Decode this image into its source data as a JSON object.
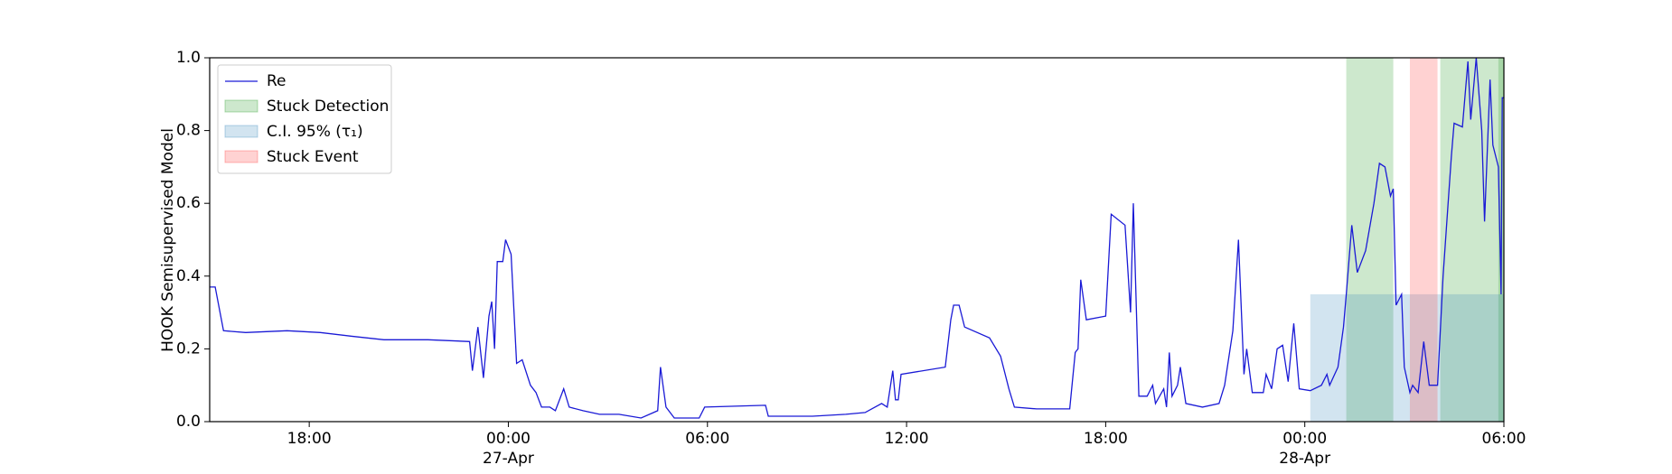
{
  "chart_data": {
    "type": "line",
    "ylabel": "HOOK Semisupervised Model",
    "xlim": [
      "04-26T15:00",
      "04-28T06:00"
    ],
    "ylim": [
      0,
      1
    ],
    "xticks": [
      {
        "value": "04-26T18:00",
        "label": "18:00"
      },
      {
        "value": "04-27T00:00",
        "label": "00:00\n27-Apr"
      },
      {
        "value": "04-27T06:00",
        "label": "06:00"
      },
      {
        "value": "04-27T12:00",
        "label": "12:00"
      },
      {
        "value": "04-27T18:00",
        "label": "18:00"
      },
      {
        "value": "04-28T00:00",
        "label": "00:00\n28-Apr"
      },
      {
        "value": "04-28T06:00",
        "label": "06:00"
      }
    ],
    "yticks": [
      {
        "value": 0,
        "label": "0.0"
      },
      0.2,
      0.4,
      0.6,
      0.8,
      {
        "value": 1,
        "label": "1.0"
      }
    ],
    "legend": "upper left",
    "series": [
      {
        "name": "Re",
        "color": "#1a1ad6",
        "x": [
          "04-26T15:00",
          "04-26T15:10",
          "04-26T15:25",
          "04-26T16:05",
          "04-26T17:20",
          "04-26T18:20",
          "04-26T19:15",
          "04-26T20:15",
          "04-26T21:35",
          "04-26T22:50",
          "04-26T22:55",
          "04-26T23:05",
          "04-26T23:15",
          "04-26T23:25",
          "04-26T23:30",
          "04-26T23:35",
          "04-26T23:40",
          "04-26T23:50",
          "04-26T23:55",
          "04-27T00:05",
          "04-27T00:15",
          "04-27T00:25",
          "04-27T00:40",
          "04-27T00:50",
          "04-27T01:00",
          "04-27T01:15",
          "04-27T01:25",
          "04-27T01:40",
          "04-27T01:50",
          "04-27T02:15",
          "04-27T02:45",
          "04-27T03:20",
          "04-27T04:00",
          "04-27T04:30",
          "04-27T04:35",
          "04-27T04:45",
          "04-27T05:00",
          "04-27T05:45",
          "04-27T05:55",
          "04-27T07:45",
          "04-27T07:50",
          "04-27T09:10",
          "04-27T10:10",
          "04-27T10:45",
          "04-27T11:15",
          "04-27T11:25",
          "04-27T11:35",
          "04-27T11:40",
          "04-27T11:45",
          "04-27T11:50",
          "04-27T13:10",
          "04-27T13:20",
          "04-27T13:25",
          "04-27T13:35",
          "04-27T13:45",
          "04-27T14:30",
          "04-27T14:50",
          "04-27T15:05",
          "04-27T15:15",
          "04-27T15:55",
          "04-27T16:55",
          "04-27T17:05",
          "04-27T17:10",
          "04-27T17:15",
          "04-27T17:25",
          "04-27T18:00",
          "04-27T18:10",
          "04-27T18:35",
          "04-27T18:45",
          "04-27T18:50",
          "04-27T19:00",
          "04-27T19:15",
          "04-27T19:25",
          "04-27T19:30",
          "04-27T19:45",
          "04-27T19:50",
          "04-27T19:55",
          "04-27T20:00",
          "04-27T20:10",
          "04-27T20:15",
          "04-27T20:25",
          "04-27T20:55",
          "04-27T21:25",
          "04-27T21:35",
          "04-27T21:50",
          "04-27T22:00",
          "04-27T22:10",
          "04-27T22:15",
          "04-27T22:25",
          "04-27T22:45",
          "04-27T22:50",
          "04-27T23:00",
          "04-27T23:10",
          "04-27T23:20",
          "04-27T23:30",
          "04-27T23:40",
          "04-27T23:50",
          "04-28T00:10",
          "04-28T00:30",
          "04-28T00:40",
          "04-28T00:45",
          "04-28T01:00",
          "04-28T01:10",
          "04-28T01:15",
          "04-28T01:25",
          "04-28T01:35",
          "04-28T01:50",
          "04-28T02:05",
          "04-28T02:15",
          "04-28T02:25",
          "04-28T02:35",
          "04-28T02:40",
          "04-28T02:45",
          "04-28T02:55",
          "04-28T03:00",
          "04-28T03:10",
          "04-28T03:15",
          "04-28T03:25",
          "04-28T03:35",
          "04-28T03:45",
          "04-28T04:00",
          "04-28T04:10",
          "04-28T04:25",
          "04-28T04:30",
          "04-28T04:45",
          "04-28T04:55",
          "04-28T05:00",
          "04-28T05:10",
          "04-28T05:20",
          "04-28T05:25",
          "04-28T05:35",
          "04-28T05:40",
          "04-28T05:50",
          "04-28T05:55",
          "04-28T05:57",
          "04-28T06:00"
        ],
        "values": [
          0.37,
          0.37,
          0.25,
          0.245,
          0.25,
          0.245,
          0.235,
          0.225,
          0.225,
          0.22,
          0.14,
          0.26,
          0.12,
          0.29,
          0.33,
          0.2,
          0.44,
          0.44,
          0.5,
          0.46,
          0.16,
          0.17,
          0.1,
          0.08,
          0.04,
          0.04,
          0.03,
          0.09,
          0.04,
          0.03,
          0.02,
          0.02,
          0.01,
          0.03,
          0.15,
          0.04,
          0.01,
          0.01,
          0.04,
          0.045,
          0.015,
          0.015,
          0.02,
          0.025,
          0.05,
          0.04,
          0.14,
          0.06,
          0.06,
          0.13,
          0.15,
          0.28,
          0.32,
          0.32,
          0.26,
          0.23,
          0.18,
          0.09,
          0.04,
          0.035,
          0.035,
          0.19,
          0.2,
          0.39,
          0.28,
          0.29,
          0.57,
          0.54,
          0.3,
          0.6,
          0.07,
          0.07,
          0.1,
          0.05,
          0.09,
          0.04,
          0.19,
          0.07,
          0.1,
          0.15,
          0.05,
          0.04,
          0.05,
          0.1,
          0.25,
          0.5,
          0.13,
          0.2,
          0.08,
          0.08,
          0.13,
          0.09,
          0.2,
          0.21,
          0.11,
          0.27,
          0.09,
          0.085,
          0.1,
          0.13,
          0.1,
          0.15,
          0.26,
          0.35,
          0.54,
          0.41,
          0.47,
          0.6,
          0.71,
          0.7,
          0.62,
          0.64,
          0.32,
          0.35,
          0.15,
          0.08,
          0.1,
          0.08,
          0.22,
          0.1,
          0.1,
          0.4,
          0.73,
          0.82,
          0.81,
          0.99,
          0.83,
          1.0,
          0.8,
          0.55,
          0.94,
          0.76,
          0.7,
          0.35,
          0.89,
          0.89
        ]
      }
    ],
    "spans": [
      {
        "name": "Stuck Detection",
        "color": "#2ca02c",
        "alpha": 0.24,
        "ranges": [
          [
            "04-28T01:15",
            "04-28T02:40"
          ],
          [
            "04-28T04:05",
            "04-28T06:00"
          ],
          [
            "04-28T05:50",
            "04-28T06:00"
          ]
        ]
      },
      {
        "name": "C.I. 95% (τ₁)",
        "color": "#1f77b4",
        "alpha": 0.2,
        "top": 0.35,
        "ranges": [
          [
            "04-28T00:10",
            "04-28T06:00"
          ]
        ]
      },
      {
        "name": "Stuck Event",
        "color": "#ff3030",
        "alpha": 0.22,
        "ranges": [
          [
            "04-28T03:10",
            "04-28T04:00"
          ]
        ]
      }
    ]
  }
}
